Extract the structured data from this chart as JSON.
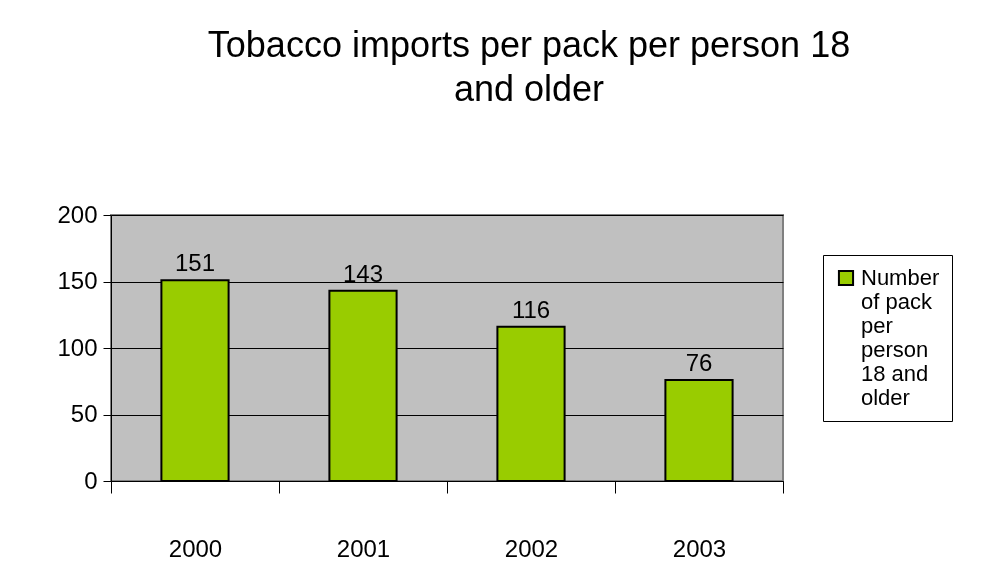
{
  "chart_data": {
    "type": "bar",
    "title": "Tobacco imports per pack per person 18 and older",
    "categories": [
      "2000",
      "2001",
      "2002",
      "2003"
    ],
    "series": [
      {
        "name": "Number of pack per person 18 and older",
        "color": "#99cc00",
        "values": [
          151,
          143,
          116,
          76
        ]
      }
    ],
    "ylim": [
      0,
      200
    ],
    "yticks": [
      0,
      50,
      100,
      150,
      200
    ],
    "grid": "y",
    "legend": "right",
    "data_labels": true
  }
}
